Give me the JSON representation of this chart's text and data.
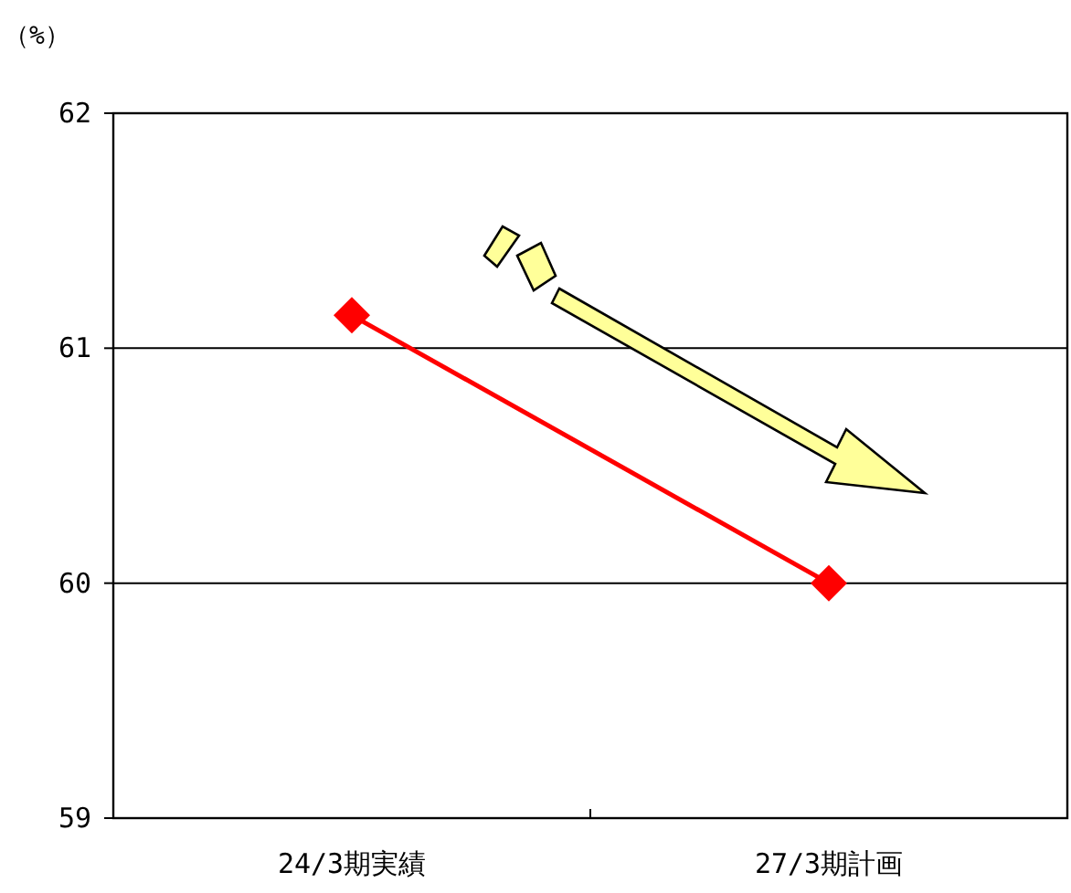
{
  "chart_data": {
    "type": "line",
    "ylabel": "（%）",
    "categories": [
      "24/3期実績",
      "27/3期計画"
    ],
    "series": [
      {
        "color": "#ff0000",
        "values": [
          61.14,
          60.0
        ]
      }
    ],
    "ylim": [
      59,
      62
    ],
    "yticks": [
      59,
      60,
      61,
      62
    ],
    "grid": "y",
    "marker": "diamond",
    "line_style": "solid"
  }
}
